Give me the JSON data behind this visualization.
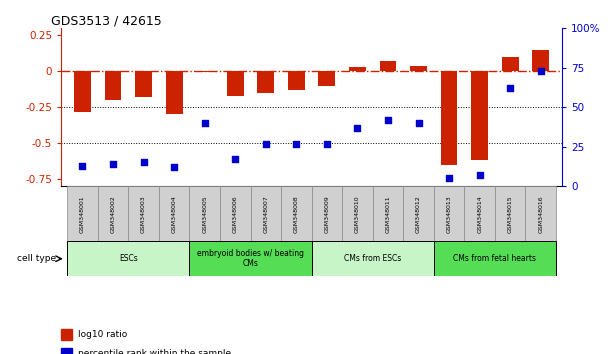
{
  "title": "GDS3513 / 42615",
  "samples": [
    "GSM348001",
    "GSM348002",
    "GSM348003",
    "GSM348004",
    "GSM348005",
    "GSM348006",
    "GSM348007",
    "GSM348008",
    "GSM348009",
    "GSM348010",
    "GSM348011",
    "GSM348012",
    "GSM348013",
    "GSM348014",
    "GSM348015",
    "GSM348016"
  ],
  "log10_ratio": [
    -0.28,
    -0.2,
    -0.18,
    -0.3,
    -0.005,
    -0.17,
    -0.15,
    -0.13,
    -0.1,
    0.03,
    0.07,
    0.04,
    -0.65,
    -0.62,
    0.1,
    0.15
  ],
  "percentile_rank": [
    13,
    14,
    15,
    12,
    40,
    17,
    27,
    27,
    27,
    37,
    42,
    40,
    5,
    7,
    62,
    73
  ],
  "cell_type_groups": [
    {
      "label": "ESCs",
      "start": 0,
      "end": 3,
      "color": "#c8f5c8"
    },
    {
      "label": "embryoid bodies w/ beating\nCMs",
      "start": 4,
      "end": 7,
      "color": "#55dd55"
    },
    {
      "label": "CMs from ESCs",
      "start": 8,
      "end": 11,
      "color": "#c8f5c8"
    },
    {
      "label": "CMs from fetal hearts",
      "start": 12,
      "end": 15,
      "color": "#55dd55"
    }
  ],
  "bar_color": "#cc2200",
  "dot_color": "#0000cc",
  "ylim_left": [
    -0.8,
    0.3
  ],
  "ylim_right": [
    0,
    100
  ],
  "yticks_left": [
    -0.75,
    -0.5,
    -0.25,
    0,
    0.25
  ],
  "yticks_right": [
    0,
    25,
    50,
    75,
    100
  ],
  "hline_zero_color": "#cc2200",
  "hline_dotted_vals": [
    -0.25,
    -0.5
  ],
  "legend_items": [
    {
      "label": "log10 ratio",
      "color": "#cc2200"
    },
    {
      "label": "percentile rank within the sample",
      "color": "#0000cc"
    }
  ],
  "cell_type_label": "cell type"
}
